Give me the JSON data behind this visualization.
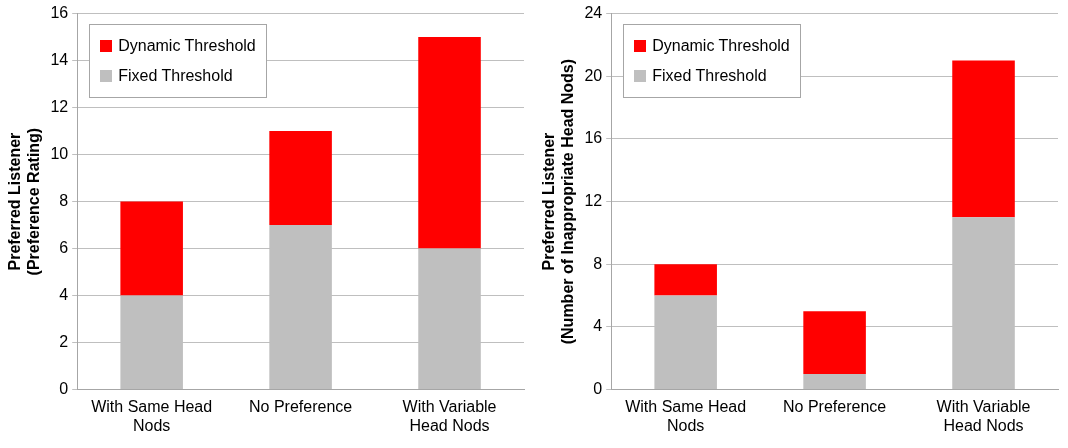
{
  "chart_data": [
    {
      "type": "bar",
      "stacked": true,
      "categories": [
        "With Same Head Nods",
        "No Preference",
        "With Variable Head Nods"
      ],
      "ylabel": "Preferred Listener\n(Preference Rating)",
      "series": [
        {
          "name": "Fixed Threshold",
          "color": "#bfbfbf",
          "values": [
            4,
            7,
            6
          ]
        },
        {
          "name": "Dynamic Threshold",
          "color": "#ff0000",
          "values": [
            4,
            4,
            9
          ]
        }
      ],
      "ylim": [
        0,
        16
      ],
      "yticks": [
        0,
        2,
        4,
        6,
        8,
        10,
        12,
        14,
        16
      ],
      "grid": "y",
      "legend": "top left"
    },
    {
      "type": "bar",
      "stacked": true,
      "categories": [
        "With Same Head Nods",
        "No Preference",
        "With Variable Head Nods"
      ],
      "ylabel": "Preferred Listener\n(Number of Inappropriate Head Nods)",
      "series": [
        {
          "name": "Fixed Threshold",
          "color": "#bfbfbf",
          "values": [
            6,
            1,
            11
          ]
        },
        {
          "name": "Dynamic Threshold",
          "color": "#ff0000",
          "values": [
            2,
            4,
            10
          ]
        }
      ],
      "ylim": [
        0,
        24
      ],
      "yticks": [
        0,
        4,
        8,
        12,
        16,
        20,
        24
      ],
      "grid": "y",
      "legend": "top left"
    }
  ]
}
